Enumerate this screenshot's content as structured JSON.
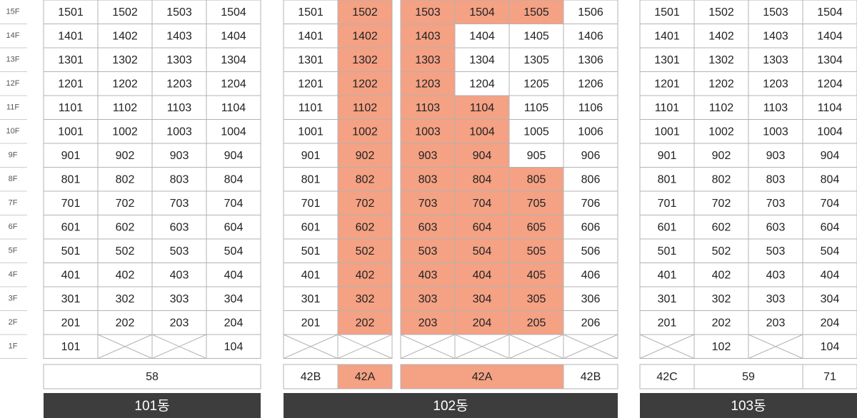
{
  "floors": [
    "15F",
    "14F",
    "13F",
    "12F",
    "11F",
    "10F",
    "9F",
    "8F",
    "7F",
    "6F",
    "5F",
    "4F",
    "3F",
    "2F",
    "1F"
  ],
  "buildings": [
    {
      "name": "101동",
      "groups": [
        {
          "rows": [
            [
              "1501",
              "1502",
              "1503",
              "1504"
            ],
            [
              "1401",
              "1402",
              "1403",
              "1404"
            ],
            [
              "1301",
              "1302",
              "1303",
              "1304"
            ],
            [
              "1201",
              "1202",
              "1203",
              "1204"
            ],
            [
              "1101",
              "1102",
              "1103",
              "1104"
            ],
            [
              "1001",
              "1002",
              "1003",
              "1004"
            ],
            [
              "901",
              "902",
              "903",
              "904"
            ],
            [
              "801",
              "802",
              "803",
              "804"
            ],
            [
              "701",
              "702",
              "703",
              "704"
            ],
            [
              "601",
              "602",
              "603",
              "604"
            ],
            [
              "501",
              "502",
              "503",
              "504"
            ],
            [
              "401",
              "402",
              "403",
              "404"
            ],
            [
              "301",
              "302",
              "303",
              "304"
            ],
            [
              "201",
              "202",
              "203",
              "204"
            ],
            [
              "101",
              null,
              null,
              "104"
            ]
          ],
          "types": [
            {
              "label": "58",
              "span": 4
            }
          ]
        }
      ]
    },
    {
      "name": "102동",
      "groups": [
        {
          "rows": [
            [
              "1501",
              "1502"
            ],
            [
              "1401",
              "1402"
            ],
            [
              "1301",
              "1302"
            ],
            [
              "1201",
              "1202"
            ],
            [
              "1101",
              "1102"
            ],
            [
              "1001",
              "1002"
            ],
            [
              "901",
              "902"
            ],
            [
              "801",
              "802"
            ],
            [
              "701",
              "702"
            ],
            [
              "601",
              "602"
            ],
            [
              "501",
              "502"
            ],
            [
              "401",
              "402"
            ],
            [
              "301",
              "302"
            ],
            [
              "201",
              "202"
            ],
            [
              null,
              null
            ]
          ],
          "highlight": [
            [
              false,
              true
            ],
            [
              false,
              true
            ],
            [
              false,
              true
            ],
            [
              false,
              true
            ],
            [
              false,
              true
            ],
            [
              false,
              true
            ],
            [
              false,
              true
            ],
            [
              false,
              true
            ],
            [
              false,
              true
            ],
            [
              false,
              true
            ],
            [
              false,
              true
            ],
            [
              false,
              true
            ],
            [
              false,
              true
            ],
            [
              false,
              true
            ],
            [
              false,
              false
            ]
          ],
          "types": [
            {
              "label": "42B",
              "span": 1
            },
            {
              "label": "42A",
              "span": 1,
              "highlight": true
            }
          ]
        },
        {
          "rows": [
            [
              "1503",
              "1504",
              "1505",
              "1506"
            ],
            [
              "1403",
              "1404",
              "1405",
              "1406"
            ],
            [
              "1303",
              "1304",
              "1305",
              "1306"
            ],
            [
              "1203",
              "1204",
              "1205",
              "1206"
            ],
            [
              "1103",
              "1104",
              "1105",
              "1106"
            ],
            [
              "1003",
              "1004",
              "1005",
              "1006"
            ],
            [
              "903",
              "904",
              "905",
              "906"
            ],
            [
              "803",
              "804",
              "805",
              "806"
            ],
            [
              "703",
              "704",
              "705",
              "706"
            ],
            [
              "603",
              "604",
              "605",
              "606"
            ],
            [
              "503",
              "504",
              "505",
              "506"
            ],
            [
              "403",
              "404",
              "405",
              "406"
            ],
            [
              "303",
              "304",
              "305",
              "306"
            ],
            [
              "203",
              "204",
              "205",
              "206"
            ],
            [
              null,
              null,
              null,
              null
            ]
          ],
          "highlight": [
            [
              true,
              true,
              true,
              false
            ],
            [
              true,
              false,
              false,
              false
            ],
            [
              true,
              false,
              false,
              false
            ],
            [
              true,
              false,
              false,
              false
            ],
            [
              true,
              true,
              false,
              false
            ],
            [
              true,
              true,
              false,
              false
            ],
            [
              true,
              true,
              false,
              false
            ],
            [
              true,
              true,
              true,
              false
            ],
            [
              true,
              true,
              true,
              false
            ],
            [
              true,
              true,
              true,
              false
            ],
            [
              true,
              true,
              true,
              false
            ],
            [
              true,
              true,
              true,
              false
            ],
            [
              true,
              true,
              true,
              false
            ],
            [
              true,
              true,
              true,
              false
            ],
            [
              false,
              false,
              false,
              false
            ]
          ],
          "types": [
            {
              "label": "42A",
              "span": 3,
              "highlight": true
            },
            {
              "label": "42B",
              "span": 1
            }
          ]
        }
      ]
    },
    {
      "name": "103동",
      "groups": [
        {
          "rows": [
            [
              "1501",
              "1502",
              "1503",
              "1504"
            ],
            [
              "1401",
              "1402",
              "1403",
              "1404"
            ],
            [
              "1301",
              "1302",
              "1303",
              "1304"
            ],
            [
              "1201",
              "1202",
              "1203",
              "1204"
            ],
            [
              "1101",
              "1102",
              "1103",
              "1104"
            ],
            [
              "1001",
              "1002",
              "1003",
              "1004"
            ],
            [
              "901",
              "902",
              "903",
              "904"
            ],
            [
              "801",
              "802",
              "803",
              "804"
            ],
            [
              "701",
              "702",
              "703",
              "704"
            ],
            [
              "601",
              "602",
              "603",
              "604"
            ],
            [
              "501",
              "502",
              "503",
              "504"
            ],
            [
              "401",
              "402",
              "403",
              "404"
            ],
            [
              "301",
              "302",
              "303",
              "304"
            ],
            [
              "201",
              "202",
              "203",
              "204"
            ],
            [
              null,
              "102",
              null,
              "104"
            ]
          ],
          "types": [
            {
              "label": "42C",
              "span": 1
            },
            {
              "label": "59",
              "span": 2
            },
            {
              "label": "71",
              "span": 1
            }
          ]
        }
      ]
    }
  ]
}
